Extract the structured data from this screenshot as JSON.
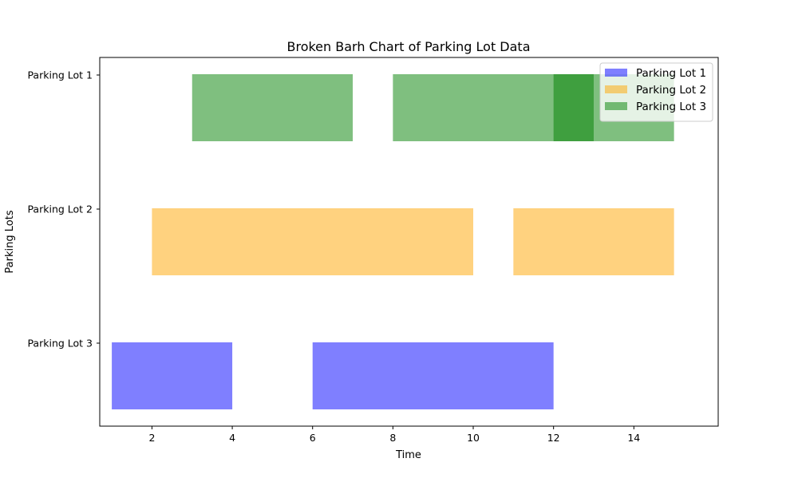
{
  "chart_data": {
    "type": "broken_barh",
    "title": "Broken Barh Chart of Parking Lot Data",
    "xlabel": "Time",
    "ylabel": "Parking Lots",
    "xlim": [
      0.7,
      16.1
    ],
    "xticks": [
      2,
      4,
      6,
      8,
      10,
      12,
      14
    ],
    "categories": [
      "Parking Lot 1",
      "Parking Lot 2",
      "Parking Lot 3"
    ],
    "grid": false,
    "legend_position": "top-right",
    "series": [
      {
        "name": "Parking Lot 1",
        "color": "#0000ff",
        "opacity": 0.5,
        "row_label": "Parking Lot 3",
        "segments": [
          {
            "start": 1,
            "duration": 3
          },
          {
            "start": 6,
            "duration": 6
          }
        ]
      },
      {
        "name": "Parking Lot 2",
        "color": "#ffa500",
        "opacity": 0.5,
        "row_label": "Parking Lot 2",
        "segments": [
          {
            "start": 2,
            "duration": 8
          },
          {
            "start": 11,
            "duration": 4
          }
        ]
      },
      {
        "name": "Parking Lot 3",
        "color": "#008000",
        "opacity": 0.5,
        "row_label": "Parking Lot 1",
        "segments": [
          {
            "start": 3,
            "duration": 4
          },
          {
            "start": 8,
            "duration": 5
          },
          {
            "start": 12,
            "duration": 3
          }
        ]
      }
    ]
  }
}
